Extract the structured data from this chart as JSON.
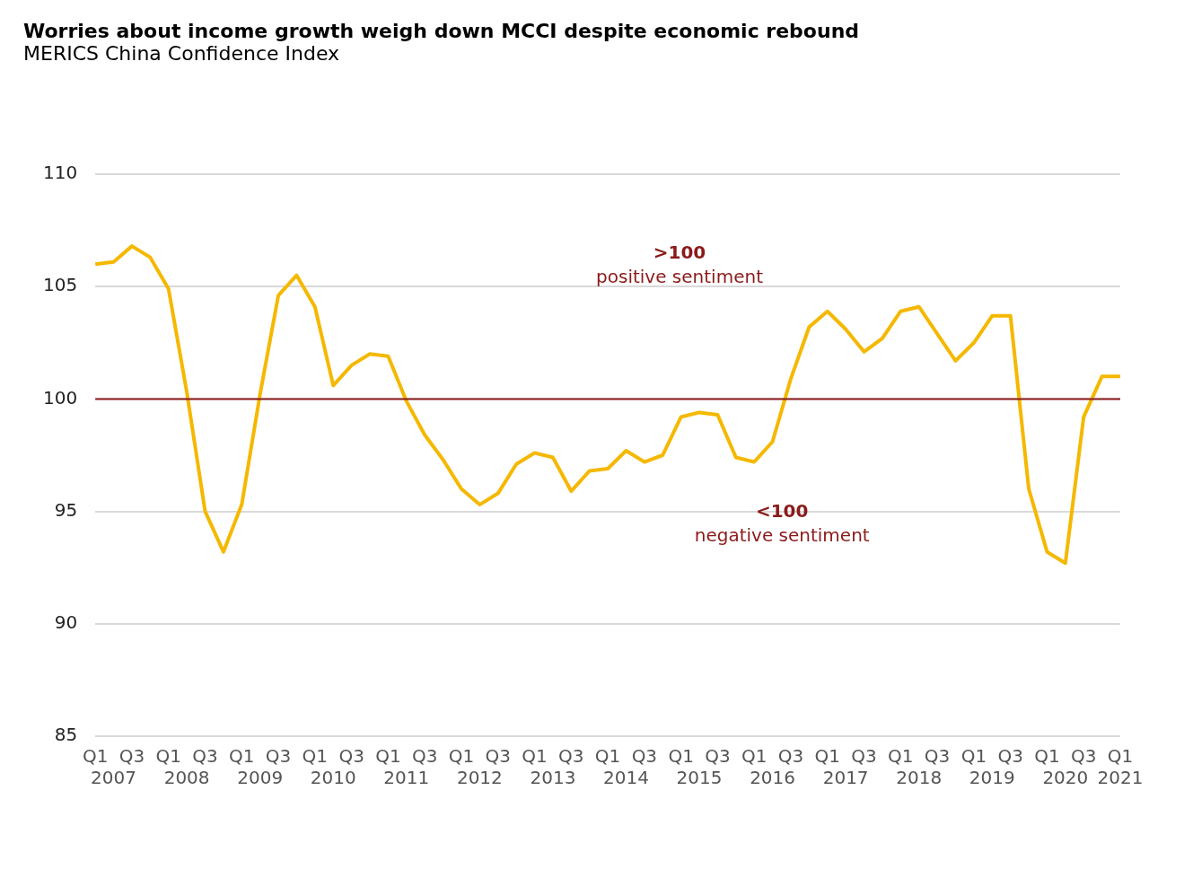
{
  "chart_data": {
    "type": "line",
    "title": "Worries about income growth weigh down MCCI despite economic rebound",
    "subtitle": "MERICS China Confidence Index",
    "categories": [
      "Q1",
      "\n2007",
      "Q3",
      null,
      "Q1",
      "\n2008",
      "Q3",
      null,
      "Q1",
      "\n2009",
      "Q3",
      null,
      "Q1",
      "\n2010",
      "Q3",
      null,
      "Q1",
      "\n2011",
      "Q3",
      null,
      "Q1",
      "\n2012",
      "Q3",
      null,
      "Q1",
      "\n2013",
      "Q3",
      null,
      "Q1",
      "\n2014",
      "Q3",
      null,
      "Q1",
      "\n2015",
      "Q3",
      null,
      "Q1",
      "\n2016",
      "Q3",
      null,
      "Q1",
      "\n2017",
      "Q3",
      null,
      "Q1",
      "\n2018",
      "Q3",
      null,
      "Q1",
      "\n2019",
      "Q3",
      null,
      "Q1",
      "\n2020",
      "Q3",
      null,
      "Q1\n2021"
    ],
    "series": [
      {
        "color": "#f5b800",
        "values": [
          106.0,
          106.1,
          106.8,
          106.3,
          104.9,
          100.3,
          95.0,
          93.2,
          95.3,
          100.2,
          104.6,
          105.5,
          104.1,
          100.6,
          101.5,
          102.0,
          101.9,
          99.9,
          98.4,
          97.3,
          96.0,
          95.3,
          95.8,
          97.1,
          97.6,
          97.4,
          95.9,
          96.8,
          96.9,
          97.7,
          97.2,
          97.5,
          99.2,
          99.4,
          99.3,
          97.4,
          97.2,
          98.1,
          100.9,
          103.2,
          103.9,
          103.1,
          102.1,
          102.7,
          103.9,
          104.1,
          102.9,
          101.7,
          102.5,
          103.7,
          103.7,
          96.0,
          93.2,
          92.7,
          99.2,
          101.0,
          101.0
        ]
      }
    ],
    "ylim": [
      85,
      110
    ],
    "yticks": [
      85,
      90,
      95,
      100,
      105,
      110
    ],
    "grid": "y",
    "legend": false,
    "marker": "none",
    "line_style": "solid",
    "ref_lines": [
      {
        "axis": "y",
        "value": 100,
        "color": "#8b1a1a"
      }
    ],
    "annotations": [
      ">100\npositive sentiment",
      "<100\nnegative sentiment"
    ]
  }
}
